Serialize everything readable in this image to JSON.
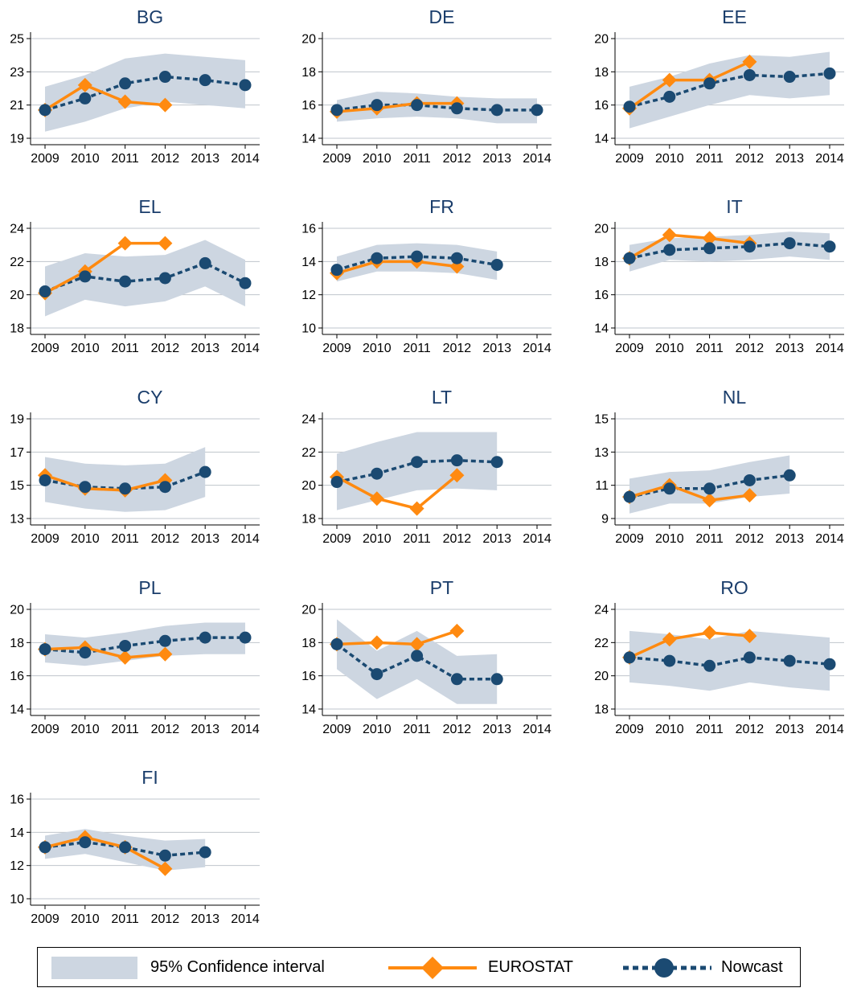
{
  "colors": {
    "ci_band": "#cdd6e1",
    "eurostat": "#ff8a10",
    "nowcast": "#1b4a72",
    "title": "#1a3d6b",
    "grid": "#bfc5cc"
  },
  "legend": {
    "ci_label": "95% Confidence interval",
    "eurostat_label": "EUROSTAT",
    "nowcast_label": "Nowcast"
  },
  "chart_data": [
    {
      "type": "line",
      "title": "BG",
      "categories": [
        "2009",
        "2010",
        "2011",
        "2012",
        "2013",
        "2014"
      ],
      "yticks": [
        19,
        21,
        23,
        25
      ],
      "ylim": [
        18.4,
        25.6
      ],
      "series": [
        {
          "name": "EUROSTAT",
          "values": [
            20.7,
            22.2,
            21.2,
            21.0,
            null,
            null
          ]
        },
        {
          "name": "Nowcast",
          "values": [
            20.7,
            21.4,
            22.3,
            22.7,
            22.5,
            22.2
          ]
        },
        {
          "name": "95% Confidence interval",
          "lower": [
            19.4,
            20.0,
            20.8,
            21.2,
            21.0,
            20.8
          ],
          "upper": [
            22.1,
            22.8,
            23.8,
            24.1,
            23.9,
            23.7
          ]
        }
      ]
    },
    {
      "type": "line",
      "title": "DE",
      "categories": [
        "2009",
        "2010",
        "2011",
        "2012",
        "2013",
        "2014"
      ],
      "yticks": [
        14,
        16,
        18,
        20
      ],
      "ylim": [
        13.4,
        20.6
      ],
      "series": [
        {
          "name": "EUROSTAT",
          "values": [
            15.6,
            15.8,
            16.1,
            16.1,
            null,
            null
          ]
        },
        {
          "name": "Nowcast",
          "values": [
            15.7,
            16.0,
            16.0,
            15.8,
            15.7,
            15.7
          ]
        },
        {
          "name": "95% Confidence interval",
          "lower": [
            15.0,
            15.2,
            15.3,
            15.2,
            14.9,
            14.9
          ],
          "upper": [
            16.3,
            16.8,
            16.7,
            16.5,
            16.4,
            16.4
          ]
        }
      ]
    },
    {
      "type": "line",
      "title": "EE",
      "categories": [
        "2009",
        "2010",
        "2011",
        "2012",
        "2013",
        "2014"
      ],
      "yticks": [
        14,
        16,
        18,
        20
      ],
      "ylim": [
        13.4,
        20.6
      ],
      "series": [
        {
          "name": "EUROSTAT",
          "values": [
            15.8,
            17.5,
            17.5,
            18.6,
            null,
            null
          ]
        },
        {
          "name": "Nowcast",
          "values": [
            15.9,
            16.5,
            17.3,
            17.8,
            17.7,
            17.9
          ]
        },
        {
          "name": "95% Confidence interval",
          "lower": [
            14.6,
            15.3,
            16.0,
            16.6,
            16.4,
            16.6
          ],
          "upper": [
            17.1,
            17.7,
            18.5,
            19.0,
            18.9,
            19.2
          ]
        }
      ]
    },
    {
      "type": "line",
      "title": "EL",
      "categories": [
        "2009",
        "2010",
        "2011",
        "2012",
        "2013",
        "2014"
      ],
      "yticks": [
        18,
        20,
        22,
        24
      ],
      "ylim": [
        17.4,
        24.6
      ],
      "series": [
        {
          "name": "EUROSTAT",
          "values": [
            20.1,
            21.4,
            23.1,
            23.1,
            null,
            null
          ]
        },
        {
          "name": "Nowcast",
          "values": [
            20.2,
            21.1,
            20.8,
            21.0,
            21.9,
            20.7
          ]
        },
        {
          "name": "95% Confidence interval",
          "lower": [
            18.7,
            19.7,
            19.3,
            19.6,
            20.5,
            19.3
          ],
          "upper": [
            21.7,
            22.5,
            22.3,
            22.4,
            23.3,
            22.1
          ]
        }
      ]
    },
    {
      "type": "line",
      "title": "FR",
      "categories": [
        "2009",
        "2010",
        "2011",
        "2012",
        "2013",
        "2014"
      ],
      "yticks": [
        10,
        12,
        14,
        16
      ],
      "ylim": [
        9.4,
        16.6
      ],
      "series": [
        {
          "name": "EUROSTAT",
          "values": [
            13.3,
            14.0,
            14.0,
            13.7,
            null,
            null
          ]
        },
        {
          "name": "Nowcast",
          "values": [
            13.5,
            14.2,
            14.3,
            14.2,
            13.8,
            null
          ]
        },
        {
          "name": "95% Confidence interval",
          "lower": [
            12.8,
            13.4,
            13.4,
            13.3,
            12.9,
            null
          ],
          "upper": [
            14.3,
            15.0,
            15.1,
            15.0,
            14.6,
            null
          ]
        }
      ]
    },
    {
      "type": "line",
      "title": "IT",
      "categories": [
        "2009",
        "2010",
        "2011",
        "2012",
        "2013",
        "2014"
      ],
      "yticks": [
        14,
        16,
        18,
        20
      ],
      "ylim": [
        13.4,
        20.6
      ],
      "series": [
        {
          "name": "EUROSTAT",
          "values": [
            18.2,
            19.6,
            19.4,
            19.1,
            null,
            null
          ]
        },
        {
          "name": "Nowcast",
          "values": [
            18.2,
            18.7,
            18.8,
            18.9,
            19.1,
            18.9
          ]
        },
        {
          "name": "95% Confidence interval",
          "lower": [
            17.4,
            18.1,
            18.0,
            18.1,
            18.3,
            18.1
          ],
          "upper": [
            19.0,
            19.4,
            19.5,
            19.6,
            19.8,
            19.7
          ]
        }
      ]
    },
    {
      "type": "line",
      "title": "CY",
      "categories": [
        "2009",
        "2010",
        "2011",
        "2012",
        "2013",
        "2014"
      ],
      "yticks": [
        13,
        15,
        17,
        19
      ],
      "ylim": [
        12.4,
        19.6
      ],
      "series": [
        {
          "name": "EUROSTAT",
          "values": [
            15.6,
            14.8,
            14.7,
            15.3,
            null,
            null
          ]
        },
        {
          "name": "Nowcast",
          "values": [
            15.3,
            14.9,
            14.8,
            14.9,
            15.8,
            null
          ]
        },
        {
          "name": "95% Confidence interval",
          "lower": [
            14.0,
            13.6,
            13.4,
            13.5,
            14.3,
            null
          ],
          "upper": [
            16.7,
            16.3,
            16.2,
            16.3,
            17.3,
            null
          ]
        }
      ]
    },
    {
      "type": "line",
      "title": "LT",
      "categories": [
        "2009",
        "2010",
        "2011",
        "2012",
        "2013",
        "2014"
      ],
      "yticks": [
        18,
        20,
        22,
        24
      ],
      "ylim": [
        17.4,
        24.6
      ],
      "series": [
        {
          "name": "EUROSTAT",
          "values": [
            20.5,
            19.2,
            18.6,
            20.6,
            null,
            null
          ]
        },
        {
          "name": "Nowcast",
          "values": [
            20.2,
            20.7,
            21.4,
            21.5,
            21.4,
            null
          ]
        },
        {
          "name": "95% Confidence interval",
          "lower": [
            18.5,
            19.1,
            19.7,
            19.8,
            19.7,
            null
          ],
          "upper": [
            21.9,
            22.6,
            23.2,
            23.2,
            23.2,
            null
          ]
        }
      ]
    },
    {
      "type": "line",
      "title": "NL",
      "categories": [
        "2009",
        "2010",
        "2011",
        "2012",
        "2013",
        "2014"
      ],
      "yticks": [
        9,
        11,
        13,
        15
      ],
      "ylim": [
        8.4,
        15.6
      ],
      "series": [
        {
          "name": "EUROSTAT",
          "values": [
            10.3,
            11.0,
            10.1,
            10.4,
            null,
            null
          ]
        },
        {
          "name": "Nowcast",
          "values": [
            10.3,
            10.8,
            10.8,
            11.3,
            11.6,
            null
          ]
        },
        {
          "name": "95% Confidence interval",
          "lower": [
            9.3,
            9.9,
            9.9,
            10.3,
            10.5,
            null
          ],
          "upper": [
            11.4,
            11.8,
            11.9,
            12.4,
            12.8,
            null
          ]
        }
      ]
    },
    {
      "type": "line",
      "title": "PL",
      "categories": [
        "2009",
        "2010",
        "2011",
        "2012",
        "2013",
        "2014"
      ],
      "yticks": [
        14,
        16,
        18,
        20
      ],
      "ylim": [
        13.4,
        20.6
      ],
      "series": [
        {
          "name": "EUROSTAT",
          "values": [
            17.6,
            17.7,
            17.1,
            17.3,
            null,
            null
          ]
        },
        {
          "name": "Nowcast",
          "values": [
            17.6,
            17.4,
            17.8,
            18.1,
            18.3,
            18.3
          ]
        },
        {
          "name": "95% Confidence interval",
          "lower": [
            16.8,
            16.6,
            16.9,
            17.2,
            17.3,
            17.3
          ],
          "upper": [
            18.5,
            18.3,
            18.6,
            19.0,
            19.2,
            19.2
          ]
        }
      ]
    },
    {
      "type": "line",
      "title": "PT",
      "categories": [
        "2009",
        "2010",
        "2011",
        "2012",
        "2013",
        "2014"
      ],
      "yticks": [
        14,
        16,
        18,
        20
      ],
      "ylim": [
        13.4,
        20.6
      ],
      "series": [
        {
          "name": "EUROSTAT",
          "values": [
            17.9,
            18.0,
            17.9,
            18.7,
            null,
            null
          ]
        },
        {
          "name": "Nowcast",
          "values": [
            17.9,
            16.1,
            17.2,
            15.8,
            15.8,
            null
          ]
        },
        {
          "name": "95% Confidence interval",
          "lower": [
            16.4,
            14.6,
            15.8,
            14.3,
            14.3,
            null
          ],
          "upper": [
            19.4,
            17.5,
            18.7,
            17.2,
            17.3,
            null
          ]
        }
      ]
    },
    {
      "type": "line",
      "title": "RO",
      "categories": [
        "2009",
        "2010",
        "2011",
        "2012",
        "2013",
        "2014"
      ],
      "yticks": [
        18,
        20,
        22,
        24
      ],
      "ylim": [
        17.4,
        24.6
      ],
      "series": [
        {
          "name": "EUROSTAT",
          "values": [
            21.1,
            22.2,
            22.6,
            22.4,
            null,
            null
          ]
        },
        {
          "name": "Nowcast",
          "values": [
            21.1,
            20.9,
            20.6,
            21.1,
            20.9,
            20.7
          ]
        },
        {
          "name": "95% Confidence interval",
          "lower": [
            19.6,
            19.4,
            19.1,
            19.6,
            19.3,
            19.1
          ],
          "upper": [
            22.7,
            22.5,
            22.2,
            22.7,
            22.5,
            22.3
          ]
        }
      ]
    },
    {
      "type": "line",
      "title": "FI",
      "categories": [
        "2009",
        "2010",
        "2011",
        "2012",
        "2013",
        "2014"
      ],
      "yticks": [
        10,
        12,
        14,
        16
      ],
      "ylim": [
        9.4,
        16.6
      ],
      "series": [
        {
          "name": "EUROSTAT",
          "values": [
            13.1,
            13.7,
            13.1,
            11.8,
            null,
            null
          ]
        },
        {
          "name": "Nowcast",
          "values": [
            13.1,
            13.4,
            13.1,
            12.6,
            12.8,
            null
          ]
        },
        {
          "name": "95% Confidence interval",
          "lower": [
            12.4,
            12.7,
            12.2,
            11.7,
            11.9,
            null
          ],
          "upper": [
            13.8,
            14.2,
            13.8,
            13.5,
            13.6,
            null
          ]
        }
      ]
    }
  ]
}
